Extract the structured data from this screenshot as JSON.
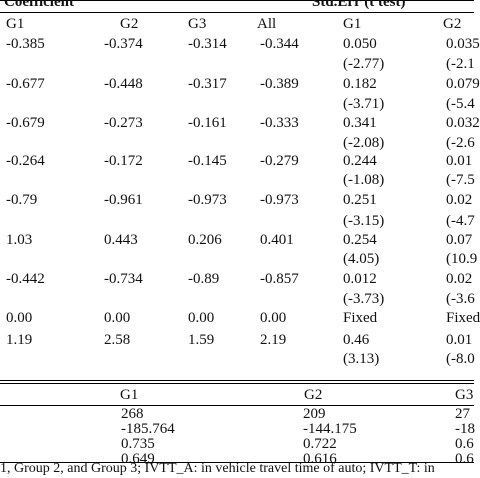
{
  "headers": {
    "coefficient": "Coefficient",
    "stderr": "Std.Err (t test)"
  },
  "group_cols": [
    "G1",
    "G2",
    "G3",
    "All",
    "G1",
    "G2"
  ],
  "rows": [
    {
      "g1": "-0.385",
      "g2": "-0.374",
      "g3": "-0.314",
      "all": "-0.344",
      "se1": "0.050",
      "se2": "0.035",
      "t1": "(-2.77)",
      "t2": "(-2.1"
    },
    {
      "g1": "-0.677",
      "g2": "-0.448",
      "g3": "-0.317",
      "all": "-0.389",
      "se1": "0.182",
      "se2": "0.079",
      "t1": "(-3.71)",
      "t2": "(-5.4"
    },
    {
      "g1": "-0.679",
      "g2": "-0.273",
      "g3": "-0.161",
      "all": "-0.333",
      "se1": "0.341",
      "se2": "0.032",
      "t1": "(-2.08)",
      "t2": "(-2.6"
    },
    {
      "g1": "-0.264",
      "g2": "-0.172",
      "g3": "-0.145",
      "all": "-0.279",
      "se1": "0.244",
      "se2": "0.01",
      "t1": "(-1.08)",
      "t2": "(-7.5"
    },
    {
      "g1": "-0.79",
      "g2": "-0.961",
      "g3": "-0.973",
      "all": "-0.973",
      "se1": "0.251",
      "se2": "0.02",
      "t1": "(-3.15)",
      "t2": "(-4.7"
    },
    {
      "g1": "1.03",
      "g2": "0.443",
      "g3": "0.206",
      "all": "0.401",
      "se1": "0.254",
      "se2": "0.07",
      "t1": "(4.05)",
      "t2": "(10.9"
    },
    {
      "g1": "-0.442",
      "g2": "-0.734",
      "g3": "-0.89",
      "all": "-0.857",
      "se1": "0.012",
      "se2": "0.02",
      "t1": "(-3.73)",
      "t2": "(-3.6"
    },
    {
      "g1": "0.00",
      "g2": "0.00",
      "g3": "0.00",
      "all": "0.00",
      "se1": "Fixed",
      "se2": "Fixed"
    },
    {
      "g1": "1.19",
      "g2": "2.58",
      "g3": "1.59",
      "all": "2.19",
      "se1": "0.46",
      "se2": "0.01",
      "t1": "(3.13)",
      "t2": "(-8.0"
    }
  ],
  "stats": {
    "cols": [
      "G1",
      "G2",
      "G3"
    ],
    "rows": [
      [
        "268",
        "209",
        "27"
      ],
      [
        "-185.764",
        "-144.175",
        "-18"
      ],
      [
        "0.735",
        "0.722",
        "0.6"
      ],
      [
        "0.649",
        "0.616",
        "0.6"
      ]
    ]
  },
  "footnote": "1, Group 2, and Group 3; IVTT_A: in vehicle travel time of auto; IVTT_T: in"
}
